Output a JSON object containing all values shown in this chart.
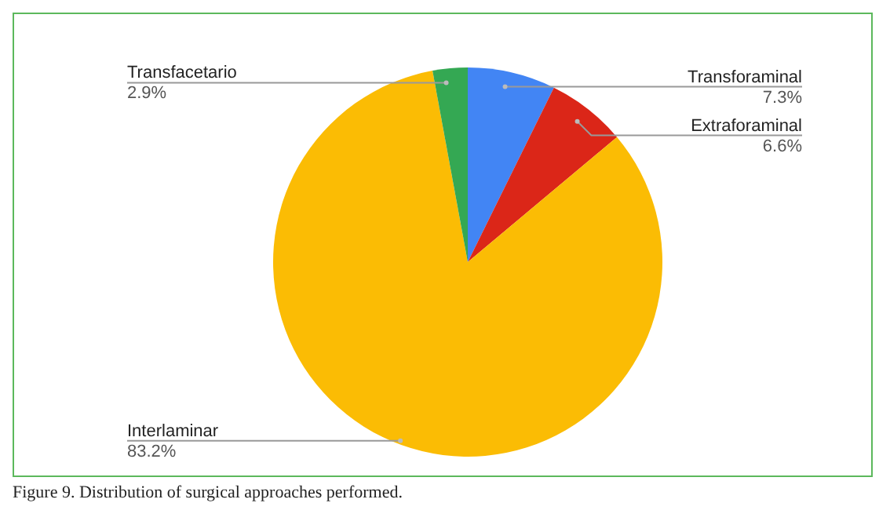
{
  "chart_data": {
    "type": "pie",
    "categories": [
      "Transforaminal",
      "Extraforaminal",
      "Interlaminar",
      "Transfacetario"
    ],
    "values": [
      7.3,
      6.6,
      83.2,
      2.9
    ],
    "value_labels": [
      "7.3%",
      "6.6%",
      "83.2%",
      "2.9%"
    ],
    "colors": [
      "#4285f4",
      "#db2618",
      "#fbbc04",
      "#34a853"
    ],
    "annotations": [
      "Figure 9. Distribution of surgical approaches performed."
    ]
  }
}
